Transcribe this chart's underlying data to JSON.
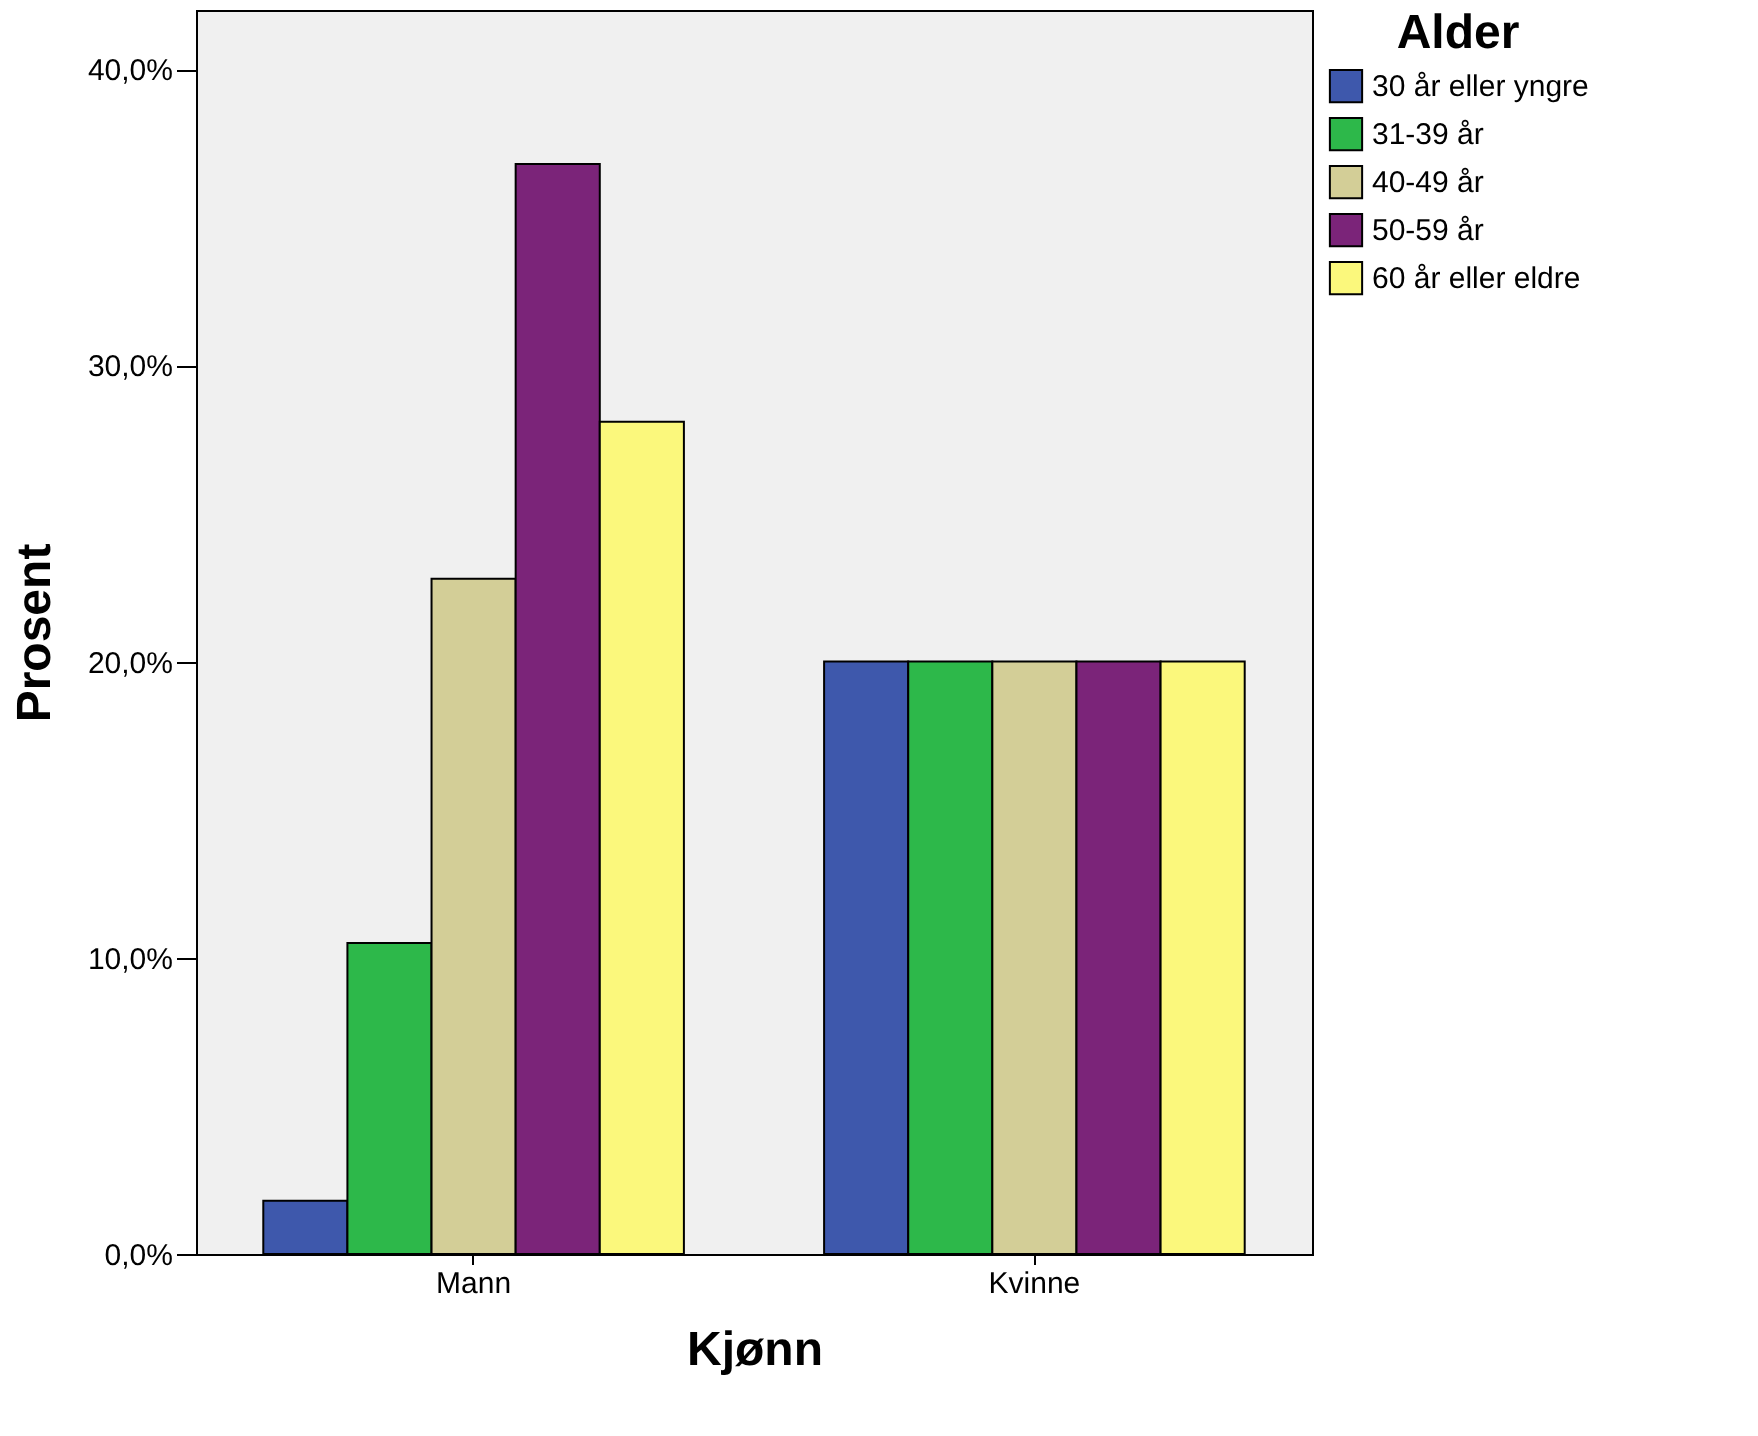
{
  "chart_data": {
    "type": "bar",
    "xlabel": "Kjønn",
    "ylabel": "Prosent",
    "legend_title": "Alder",
    "legend": "right",
    "grid": false,
    "categories": [
      "Mann",
      "Kvinne"
    ],
    "series": [
      {
        "name": "30 år eller yngre",
        "color": "#3e58ac",
        "values": [
          1.8,
          20.0
        ]
      },
      {
        "name": "31-39 år",
        "color": "#2db84a",
        "values": [
          10.5,
          20.0
        ]
      },
      {
        "name": "40-49 år",
        "color": "#d3ce97",
        "values": [
          22.8,
          20.0
        ]
      },
      {
        "name": "50-59 år",
        "color": "#7b2479",
        "values": [
          36.8,
          20.0
        ]
      },
      {
        "name": "60 år eller eldre",
        "color": "#fbf87c",
        "values": [
          28.1,
          20.0
        ]
      }
    ],
    "ylim": [
      0,
      42
    ],
    "yticks": [
      {
        "value": 0,
        "label": "0,0%"
      },
      {
        "value": 10,
        "label": "10,0%"
      },
      {
        "value": 20,
        "label": "20,0%"
      },
      {
        "value": 30,
        "label": "30,0%"
      },
      {
        "value": 40,
        "label": "40,0%"
      }
    ]
  }
}
